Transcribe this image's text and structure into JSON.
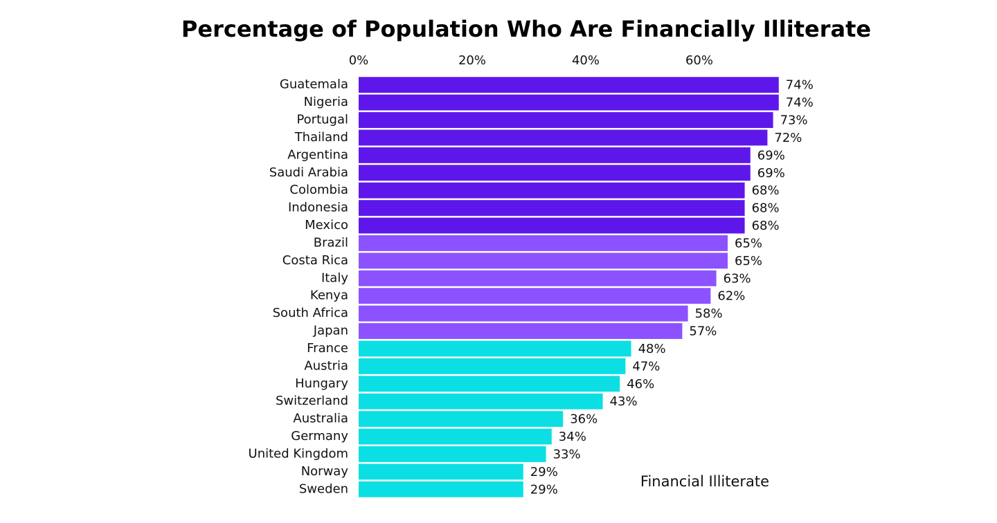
{
  "chart_data": {
    "type": "hbar",
    "title": "Percentage of Population Who Are Financially Illiterate",
    "categories": [
      "Guatemala",
      "Nigeria",
      "Portugal",
      "Thailand",
      "Argentina",
      "Saudi Arabia",
      "Colombia",
      "Indonesia",
      "Mexico",
      "Brazil",
      "Costa Rica",
      "Italy",
      "Kenya",
      "South Africa",
      "Japan",
      "France",
      "Austria",
      "Hungary",
      "Switzerland",
      "Australia",
      "Germany",
      "United Kingdom",
      "Norway",
      "Sweden"
    ],
    "series": [
      {
        "name": "Financial Illiterate",
        "values": [
          74,
          74,
          73,
          72,
          69,
          69,
          68,
          68,
          68,
          65,
          65,
          63,
          62,
          58,
          57,
          48,
          47,
          46,
          43,
          36,
          34,
          33,
          29,
          29
        ],
        "value_labels": [
          "74%",
          "74%",
          "73%",
          "72%",
          "69%",
          "69%",
          "68%",
          "68%",
          "68%",
          "65%",
          "65%",
          "63%",
          "62%",
          "58%",
          "57%",
          "48%",
          "47%",
          "46%",
          "43%",
          "36%",
          "34%",
          "33%",
          "29%",
          "29%"
        ],
        "colors": [
          "#5e17eb",
          "#5e17eb",
          "#5e17eb",
          "#5e17eb",
          "#5e17eb",
          "#5e17eb",
          "#5e17eb",
          "#5e17eb",
          "#5e17eb",
          "#8c52ff",
          "#8c52ff",
          "#8c52ff",
          "#8c52ff",
          "#8c52ff",
          "#8c52ff",
          "#0cdfe3",
          "#0cdfe3",
          "#0cdfe3",
          "#0cdfe3",
          "#0cdfe3",
          "#0cdfe3",
          "#0cdfe3",
          "#0cdfe3",
          "#0cdfe3"
        ]
      }
    ],
    "xlim": [
      0,
      80
    ],
    "xticks": [
      {
        "value": 0,
        "label": "0%"
      },
      {
        "value": 20,
        "label": "20%"
      },
      {
        "value": 40,
        "label": "40%"
      },
      {
        "value": 60,
        "label": "60%"
      }
    ],
    "grid": false
  }
}
